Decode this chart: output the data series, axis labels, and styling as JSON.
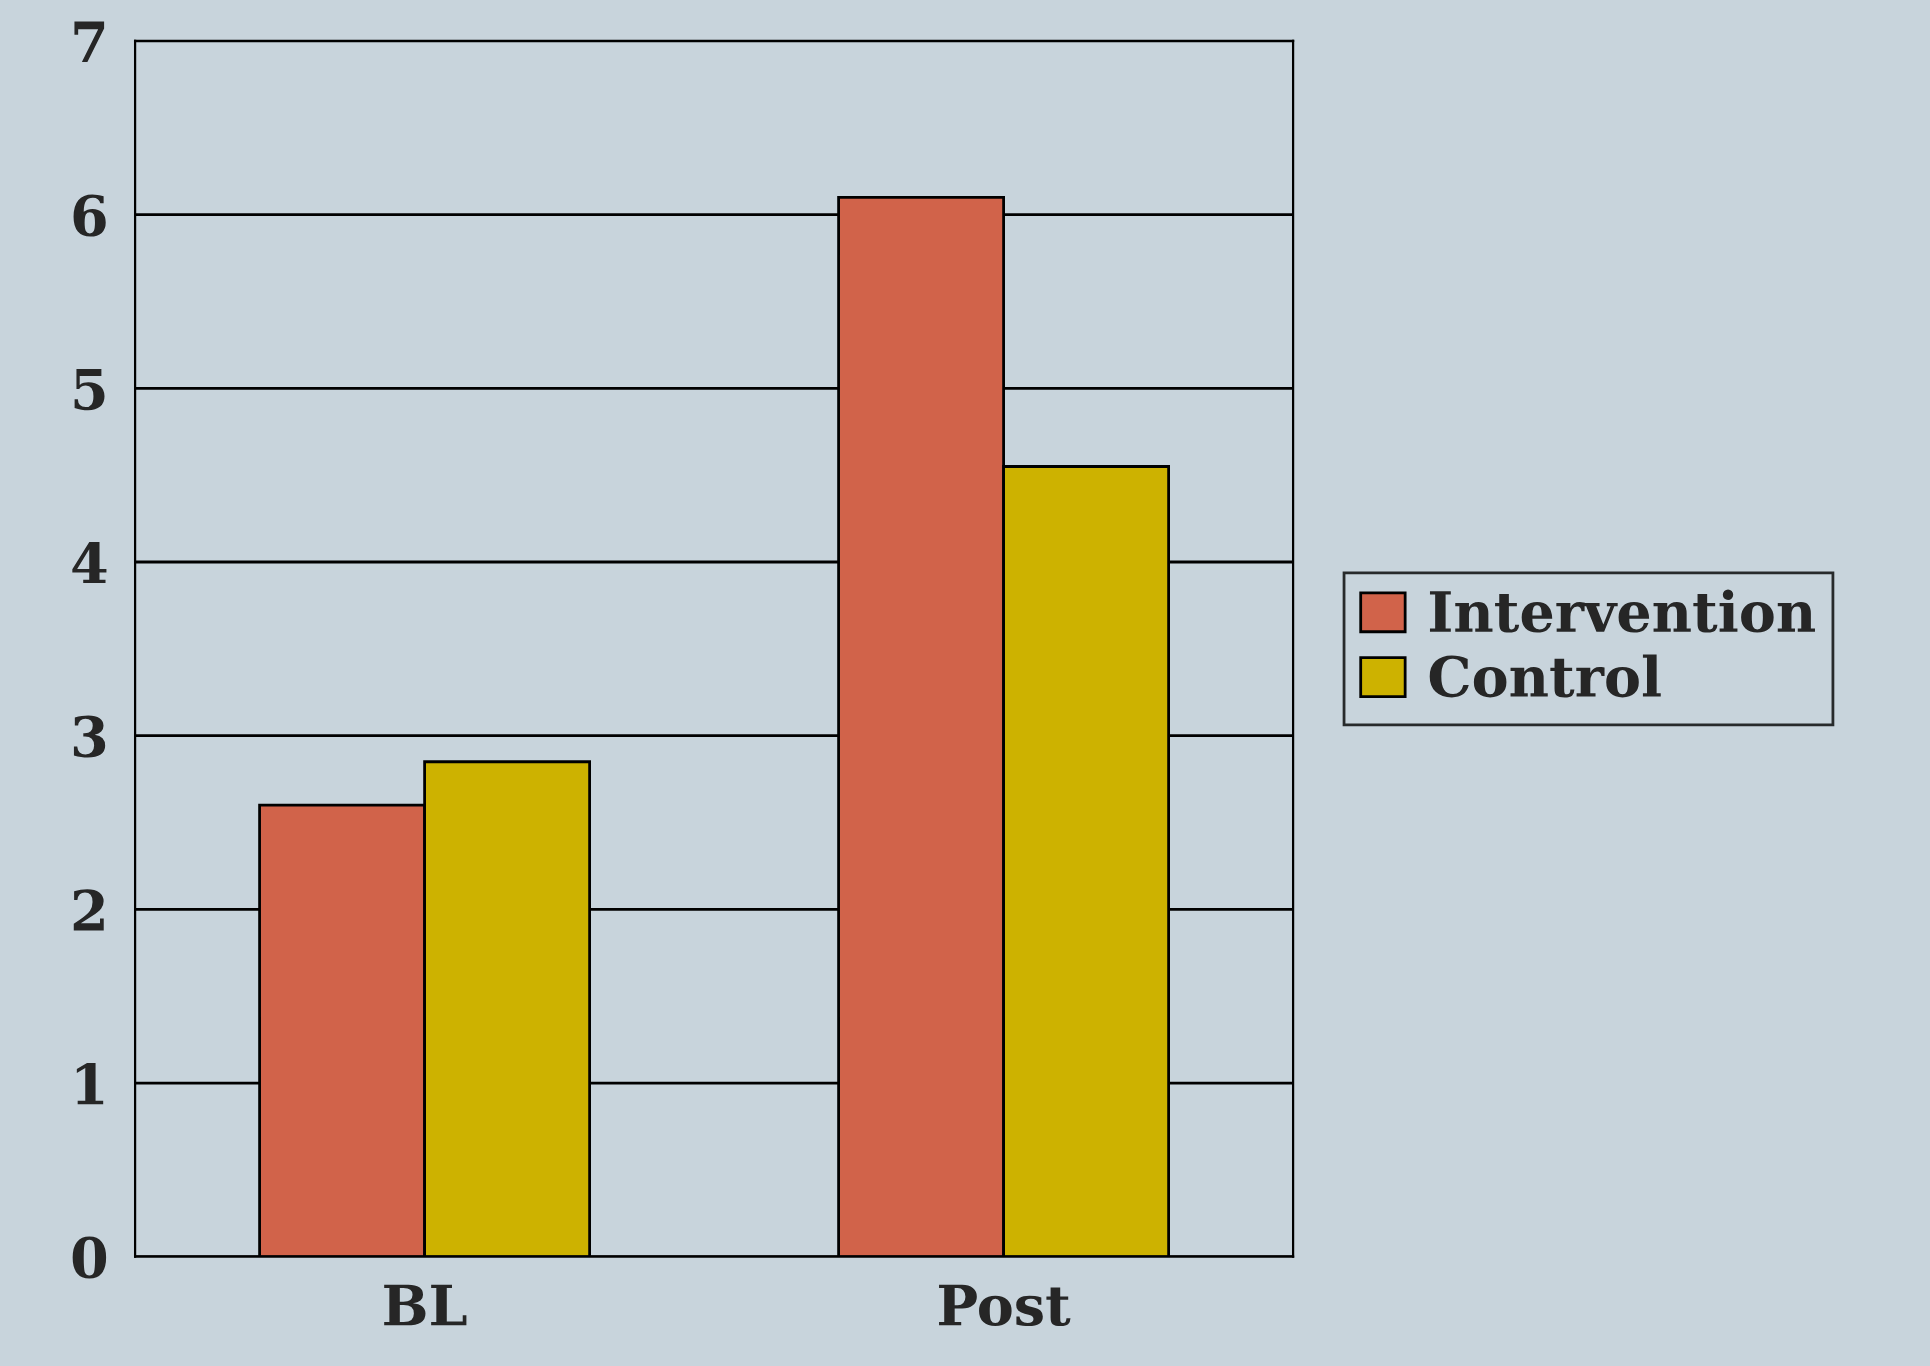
{
  "chart_data": {
    "type": "bar",
    "categories": [
      "BL",
      "Post"
    ],
    "series": [
      {
        "name": "Intervention",
        "color": "#d1634a",
        "values": [
          2.6,
          6.1
        ]
      },
      {
        "name": "Control",
        "color": "#cdb200",
        "values": [
          2.85,
          4.55
        ]
      }
    ],
    "ylim": [
      0,
      7
    ],
    "yticks": [
      0,
      1,
      2,
      3,
      4,
      5,
      6,
      7
    ],
    "grid": "y",
    "legend": "right"
  }
}
